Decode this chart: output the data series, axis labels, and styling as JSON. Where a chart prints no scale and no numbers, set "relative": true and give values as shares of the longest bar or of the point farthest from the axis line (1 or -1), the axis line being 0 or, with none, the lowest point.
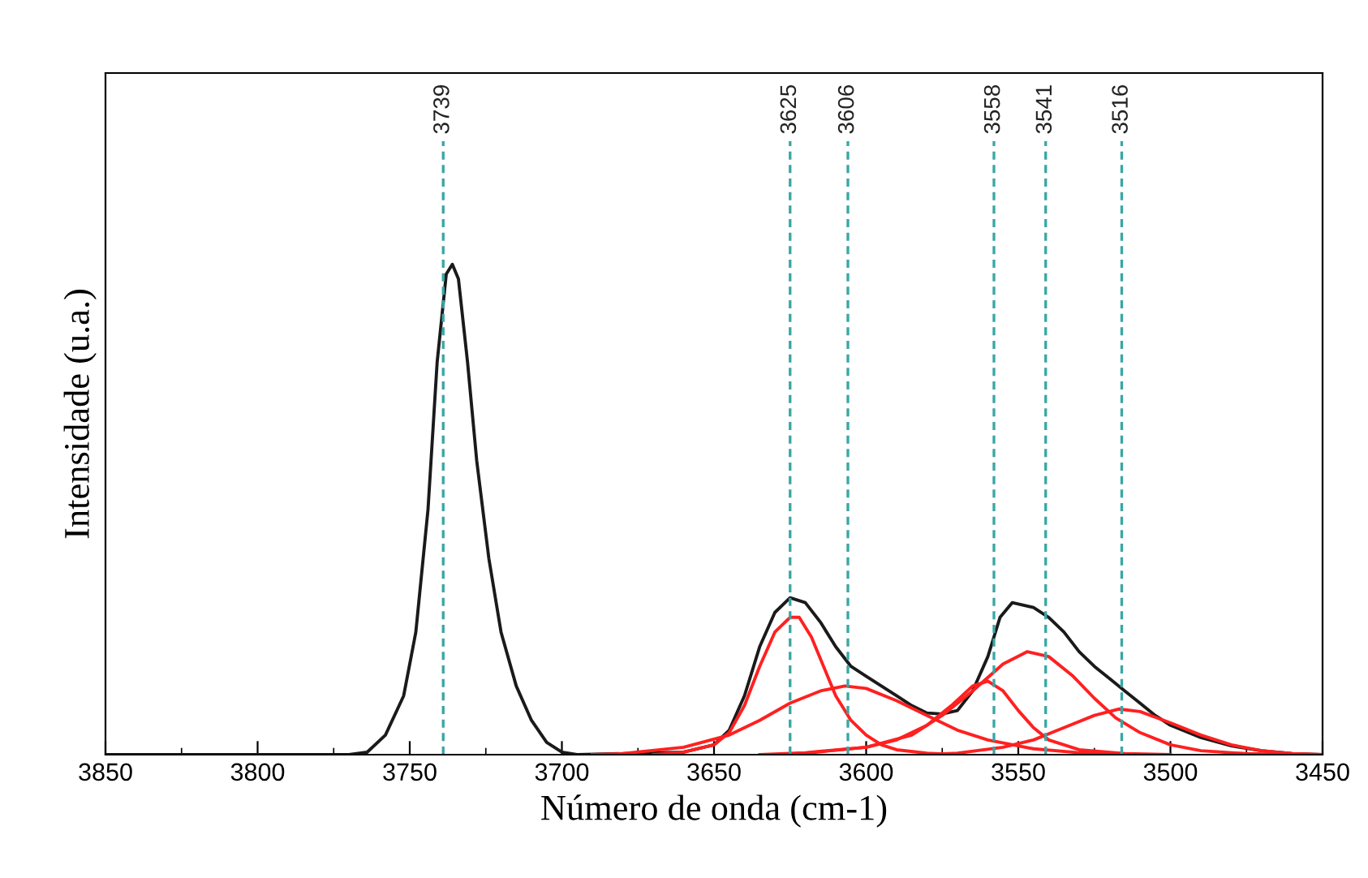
{
  "chart_data": {
    "type": "line",
    "relative": true,
    "xlabel": "Número de onda (cm-1)",
    "ylabel": "Intensidade (u.a.)",
    "xlim": [
      3850,
      3450
    ],
    "xticks": [
      3850,
      3800,
      3750,
      3700,
      3650,
      3600,
      3550,
      3500,
      3450
    ],
    "line_style": "solid",
    "marker": "none",
    "series": [
      {
        "color": "#1a1a1a",
        "x": [
          3850,
          3770,
          3764,
          3758,
          3752,
          3748,
          3744,
          3741,
          3738,
          3736,
          3734,
          3731,
          3728,
          3724,
          3720,
          3715,
          3710,
          3705,
          3700,
          3695,
          3660,
          3650,
          3645,
          3640,
          3635,
          3630,
          3625,
          3620,
          3615,
          3610,
          3605,
          3600,
          3595,
          3590,
          3585,
          3580,
          3575,
          3570,
          3565,
          3560,
          3556,
          3552,
          3545,
          3540,
          3535,
          3530,
          3525,
          3520,
          3515,
          3510,
          3505,
          3500,
          3490,
          3480,
          3470,
          3460,
          3450
        ],
        "values": [
          0,
          0,
          0.005,
          0.04,
          0.12,
          0.25,
          0.5,
          0.8,
          0.98,
          1.0,
          0.97,
          0.8,
          0.6,
          0.4,
          0.25,
          0.14,
          0.07,
          0.025,
          0.005,
          0,
          0.005,
          0.02,
          0.05,
          0.12,
          0.22,
          0.29,
          0.32,
          0.31,
          0.27,
          0.22,
          0.18,
          0.16,
          0.14,
          0.12,
          0.1,
          0.085,
          0.083,
          0.09,
          0.13,
          0.2,
          0.28,
          0.31,
          0.3,
          0.28,
          0.25,
          0.21,
          0.18,
          0.155,
          0.13,
          0.105,
          0.08,
          0.06,
          0.035,
          0.018,
          0.008,
          0.002,
          0
        ]
      },
      {
        "color": "#ff2020",
        "x": [
          3670,
          3660,
          3650,
          3645,
          3640,
          3635,
          3630,
          3625,
          3622,
          3618,
          3614,
          3610,
          3605,
          3600,
          3595,
          3590,
          3580,
          3570
        ],
        "values": [
          0,
          0.005,
          0.02,
          0.045,
          0.1,
          0.18,
          0.25,
          0.28,
          0.28,
          0.24,
          0.18,
          0.12,
          0.07,
          0.04,
          0.02,
          0.01,
          0.003,
          0
        ]
      },
      {
        "color": "#ff2020",
        "x": [
          3690,
          3680,
          3660,
          3645,
          3635,
          3625,
          3615,
          3607,
          3600,
          3590,
          3580,
          3570,
          3560,
          3545,
          3530,
          3510
        ],
        "values": [
          0,
          0.002,
          0.015,
          0.04,
          0.07,
          0.105,
          0.13,
          0.14,
          0.135,
          0.11,
          0.08,
          0.05,
          0.03,
          0.012,
          0.004,
          0
        ]
      },
      {
        "color": "#ff2020",
        "x": [
          3630,
          3620,
          3600,
          3590,
          3580,
          3572,
          3565,
          3560,
          3555,
          3550,
          3545,
          3540,
          3530,
          3515,
          3500
        ],
        "values": [
          0,
          0.003,
          0.015,
          0.03,
          0.06,
          0.1,
          0.14,
          0.15,
          0.13,
          0.09,
          0.055,
          0.03,
          0.01,
          0.002,
          0
        ]
      },
      {
        "color": "#ff2020",
        "x": [
          3635,
          3620,
          3600,
          3585,
          3575,
          3565,
          3555,
          3547,
          3540,
          3532,
          3525,
          3518,
          3510,
          3500,
          3490,
          3475,
          3460
        ],
        "values": [
          0,
          0.004,
          0.015,
          0.04,
          0.08,
          0.13,
          0.185,
          0.21,
          0.2,
          0.16,
          0.115,
          0.075,
          0.045,
          0.02,
          0.008,
          0.002,
          0
        ]
      },
      {
        "color": "#ff2020",
        "x": [
          3580,
          3570,
          3555,
          3545,
          3535,
          3525,
          3517,
          3510,
          3500,
          3490,
          3480,
          3470,
          3460,
          3450
        ],
        "values": [
          0,
          0.003,
          0.015,
          0.03,
          0.055,
          0.08,
          0.093,
          0.088,
          0.065,
          0.04,
          0.02,
          0.008,
          0.002,
          0
        ]
      }
    ],
    "ref_lines": [
      {
        "axis": "x",
        "value": 3739,
        "label": "3739",
        "color": "#3aa6a6",
        "line_style": "dashed"
      },
      {
        "axis": "x",
        "value": 3625,
        "label": "3625",
        "color": "#3aa6a6",
        "line_style": "dashed"
      },
      {
        "axis": "x",
        "value": 3606,
        "label": "3606",
        "color": "#3aa6a6",
        "line_style": "dashed"
      },
      {
        "axis": "x",
        "value": 3558,
        "label": "3558",
        "color": "#3aa6a6",
        "line_style": "dashed"
      },
      {
        "axis": "x",
        "value": 3541,
        "label": "3541",
        "color": "#3aa6a6",
        "line_style": "dashed"
      },
      {
        "axis": "x",
        "value": 3516,
        "label": "3516",
        "color": "#3aa6a6",
        "line_style": "dashed"
      }
    ]
  }
}
